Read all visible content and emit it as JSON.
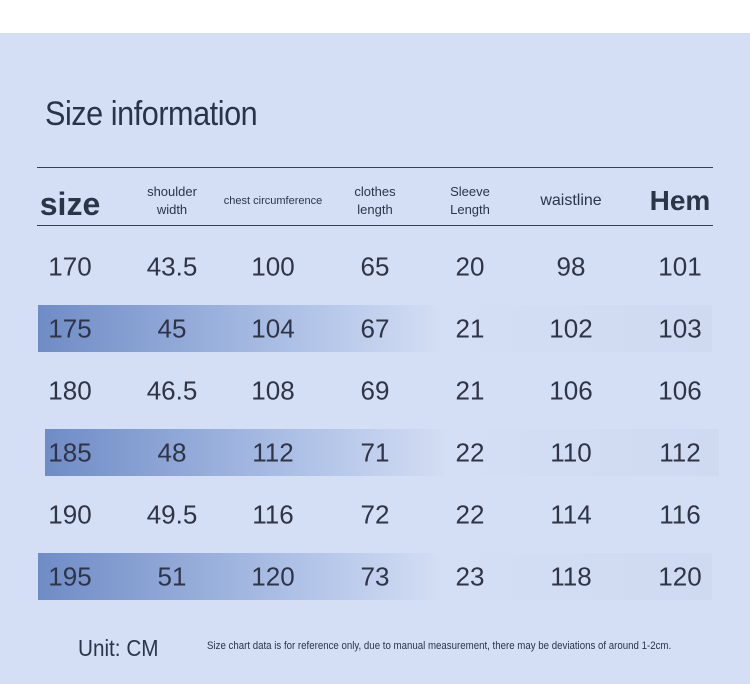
{
  "title": "Size information",
  "table": {
    "headers": [
      "size",
      "shoulder width",
      "chest circumference",
      "clothes length",
      "Sleeve Length",
      "waistline",
      "Hem"
    ],
    "rows": [
      [
        170,
        43.5,
        100,
        65,
        20,
        98,
        101
      ],
      [
        175,
        45,
        104,
        67,
        21,
        102,
        103
      ],
      [
        180,
        46.5,
        108,
        69,
        21,
        106,
        106
      ],
      [
        185,
        48,
        112,
        71,
        22,
        110,
        112
      ],
      [
        190,
        49.5,
        116,
        72,
        22,
        114,
        116
      ],
      [
        195,
        51,
        120,
        73,
        23,
        118,
        120
      ]
    ]
  },
  "unit": "Unit: CM",
  "note": "Size chart data is for reference only, due to manual measurement, there may be deviations of around 1-2cm."
}
